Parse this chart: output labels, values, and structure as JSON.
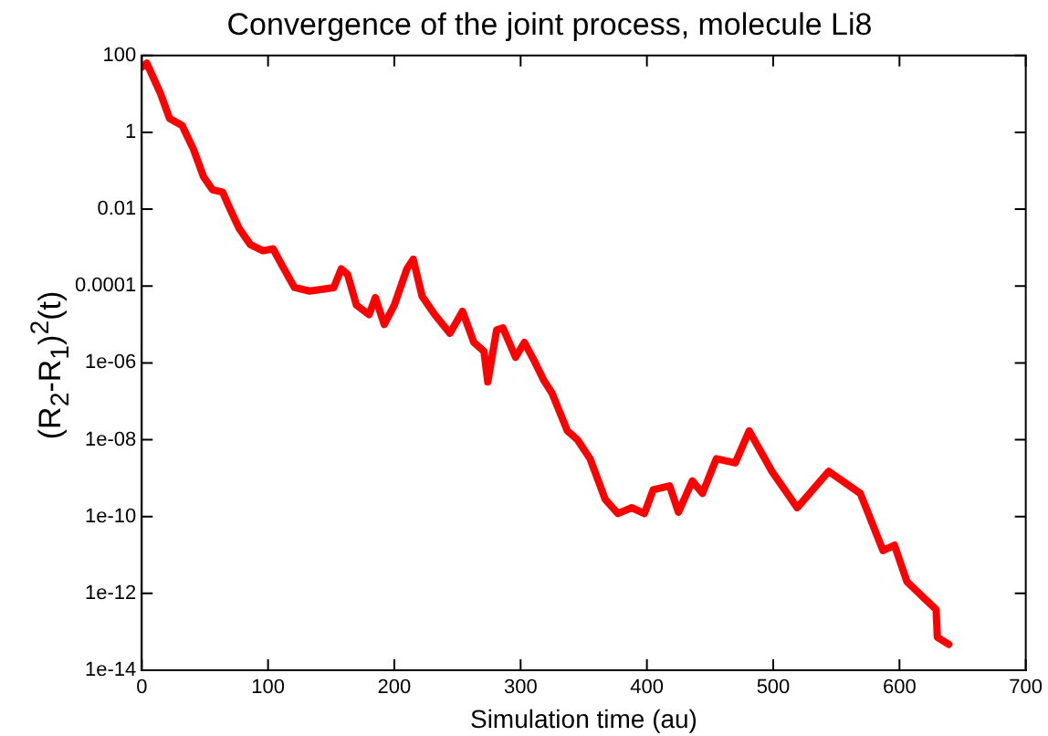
{
  "chart_data": {
    "type": "line",
    "title": "Convergence of the joint process, molecule Li8",
    "xlabel": "Simulation time (au)",
    "ylabel": "(R$_{2}$-R$_{1}$)$^{2}$(t)",
    "log": "y",
    "grid": false,
    "legend": false,
    "marker": "none",
    "line_style": "solid",
    "xlim": [
      0,
      700
    ],
    "xticks": [
      0,
      100,
      200,
      300,
      400,
      500,
      600,
      700
    ],
    "ylim": [
      1e-14,
      100
    ],
    "yticks": [
      100,
      1,
      0.01,
      0.0001,
      {
        "value": 1e-06,
        "label": "1e-06"
      },
      {
        "value": 1e-08,
        "label": "1e-08"
      },
      {
        "value": 1e-10,
        "label": "1e-10"
      },
      {
        "value": 1e-12,
        "label": "1e-12"
      },
      {
        "value": 1e-14,
        "label": "1e-14"
      }
    ],
    "series": [
      {
        "color": "#ff0000",
        "x": [
          0,
          4,
          15,
          22,
          32,
          41,
          49,
          56,
          64,
          70,
          77,
          86,
          96,
          104,
          111,
          121,
          133,
          152,
          158,
          163,
          170,
          180,
          185,
          192,
          200,
          210,
          215,
          222,
          232,
          244,
          254,
          263,
          271,
          274,
          281,
          286,
          296,
          303,
          311,
          318,
          325,
          337,
          345,
          355,
          367,
          377,
          388,
          398,
          405,
          418,
          425,
          436,
          444,
          455,
          470,
          481,
          499,
          519,
          544,
          569,
          587,
          596,
          606,
          629,
          630,
          639
        ],
        "values": [
          50,
          63,
          10,
          2.3,
          1.5,
          0.36,
          0.069,
          0.032,
          0.028,
          0.01,
          0.0032,
          0.0012,
          0.00083,
          0.00093,
          0.00035,
          9.1e-05,
          7.4e-05,
          9.1e-05,
          0.00028,
          0.0002,
          3.2e-05,
          1.8e-05,
          5e-05,
          1e-05,
          3.2e-05,
          0.00028,
          0.0005,
          5.4e-05,
          1.8e-05,
          5.9e-06,
          2.2e-05,
          3.4e-06,
          2e-06,
          3.2e-07,
          7.2e-06,
          8.1e-06,
          1.4e-06,
          3.4e-06,
          1.1e-06,
          3.7e-07,
          1.6e-07,
          1.7e-08,
          1e-08,
          3.2e-09,
          2.8e-10,
          1.2e-10,
          1.7e-10,
          1.2e-10,
          5e-10,
          6.3e-10,
          1.3e-10,
          8.5e-10,
          4e-10,
          3.2e-09,
          2.5e-09,
          1.7e-08,
          1.5e-09,
          1.7e-10,
          1.5e-09,
          4e-10,
          1.3e-11,
          1.8e-11,
          2e-12,
          3.8e-13,
          7.2e-14,
          4.7e-14
        ]
      }
    ]
  }
}
